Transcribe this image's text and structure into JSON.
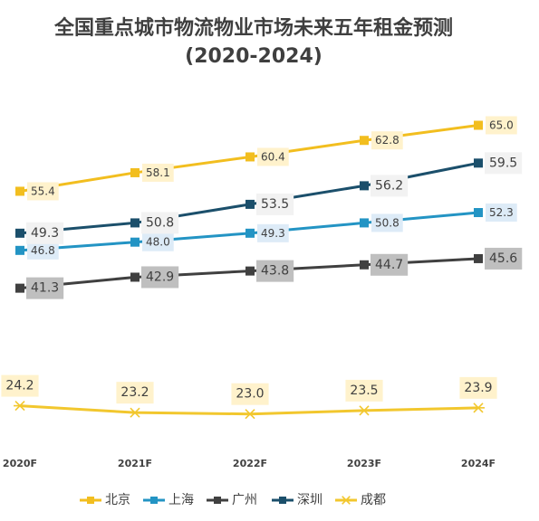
{
  "chart_data": {
    "type": "line",
    "title": "全国重点城市物流物业市场未来五年租金预测",
    "subtitle": "(2020-2024)",
    "categories": [
      "2020F",
      "2021F",
      "2022F",
      "2023F",
      "2024F"
    ],
    "ylim": [
      20,
      67
    ],
    "grid": false,
    "legend_position": "bottom",
    "series": [
      {
        "name": "北京",
        "values": [
          55.4,
          58.1,
          60.4,
          62.8,
          65.0
        ],
        "color": "#F2BE1F",
        "marker": "square",
        "label_bg": "#FFF2CC",
        "label_color": "#404040"
      },
      {
        "name": "上海",
        "values": [
          46.8,
          48.0,
          49.3,
          50.8,
          52.3
        ],
        "color": "#2394C4",
        "marker": "square",
        "label_bg": "#DDEBF7",
        "label_color": "#404040"
      },
      {
        "name": "广州",
        "values": [
          41.3,
          42.9,
          43.8,
          44.7,
          45.6
        ],
        "color": "#404040",
        "marker": "square",
        "label_bg": "#BFBFBF",
        "label_color": "#404040"
      },
      {
        "name": "深圳",
        "values": [
          49.3,
          50.8,
          53.5,
          56.2,
          59.5
        ],
        "color": "#1B4F6B",
        "marker": "square",
        "label_bg": "#F2F2F2",
        "label_color": "#404040"
      },
      {
        "name": "成都",
        "values": [
          24.2,
          23.2,
          23.0,
          23.5,
          23.9
        ],
        "color": "#F2C72E",
        "marker": "star",
        "label_bg": "#FFF2CC",
        "label_color": "#404040"
      }
    ]
  }
}
